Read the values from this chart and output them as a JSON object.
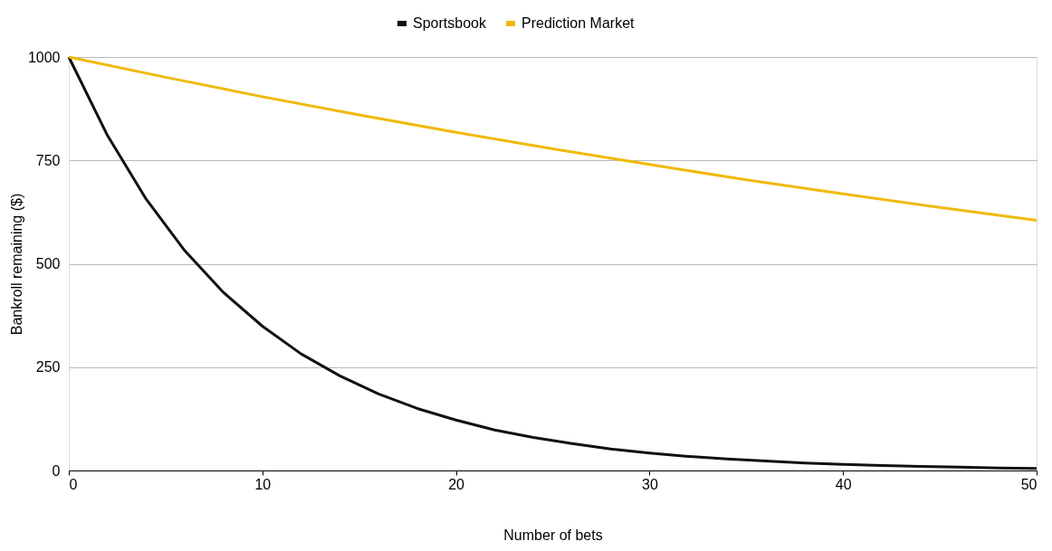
{
  "chart_data": {
    "type": "line",
    "xlabel": "Number of bets",
    "ylabel": "Bankroll remaining ($)",
    "xlim": [
      0,
      50
    ],
    "xticks": [
      0,
      10,
      20,
      30,
      40,
      50
    ],
    "ylim": [
      0,
      1000
    ],
    "yticks": [
      0,
      250,
      500,
      750,
      1000
    ],
    "grid": "y",
    "legend": "top",
    "marker": "none",
    "line_style": "solid",
    "series": [
      {
        "name": "Sportsbook",
        "color": "#111111",
        "x": [
          0,
          2,
          4,
          6,
          8,
          10,
          12,
          14,
          16,
          18,
          20,
          22,
          24,
          26,
          28,
          30,
          32,
          34,
          36,
          38,
          40,
          42,
          44,
          46,
          48,
          50
        ],
        "values": [
          1000,
          810,
          656,
          531,
          430,
          349,
          282,
          229,
          185,
          150,
          122,
          98,
          80,
          65,
          52,
          42,
          34,
          28,
          23,
          18,
          15,
          12,
          10,
          8,
          6,
          5
        ]
      },
      {
        "name": "Prediction Market",
        "color": "#f0b90b",
        "x": [
          0,
          5,
          10,
          15,
          20,
          25,
          30,
          35,
          40,
          45,
          50
        ],
        "values": [
          1000,
          951,
          904,
          860,
          818,
          778,
          740,
          703,
          669,
          636,
          605
        ]
      }
    ]
  }
}
